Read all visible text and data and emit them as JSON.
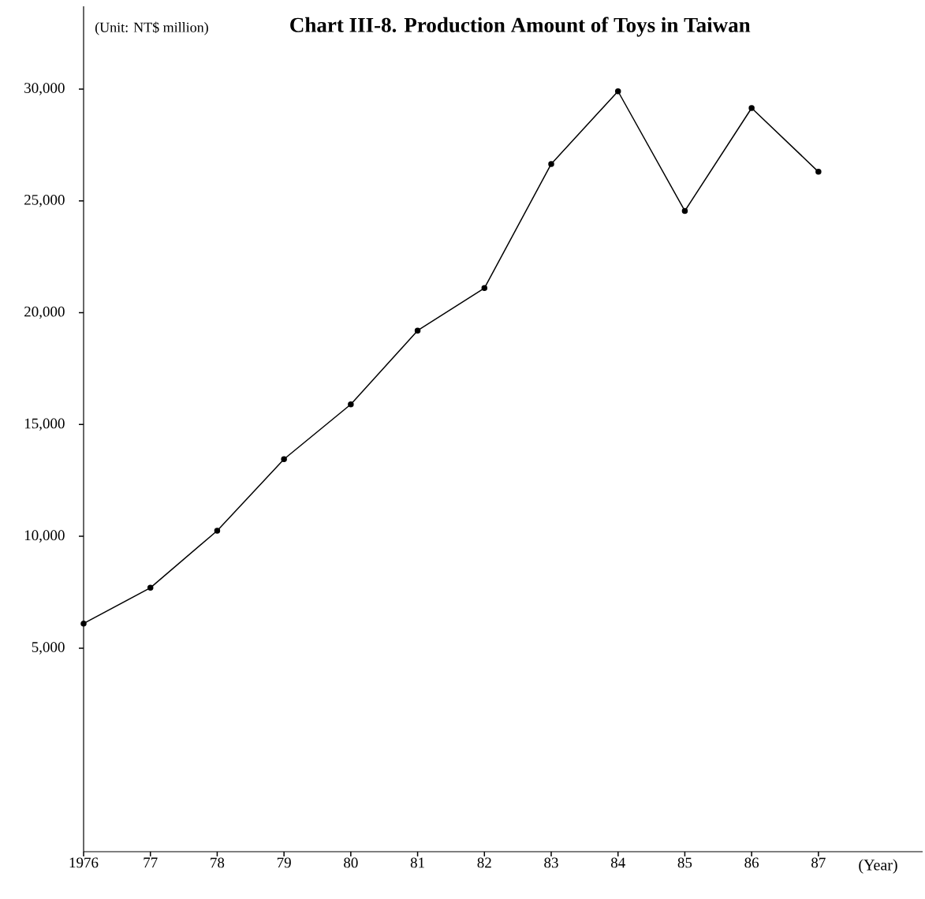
{
  "chart_data": {
    "type": "line",
    "title": "Chart III-8.  Production Amount of Toys in Taiwan",
    "ylabel": "(Unit: NT$ million)",
    "xlabel": "(Year)",
    "categories": [
      "1976",
      "77",
      "78",
      "79",
      "80",
      "81",
      "82",
      "83",
      "84",
      "85",
      "86",
      "87"
    ],
    "values": [
      6100,
      7700,
      10250,
      13450,
      15900,
      19200,
      21100,
      26650,
      29900,
      24550,
      29150,
      26300
    ],
    "color": "#000000",
    "marker": "circle",
    "line_style": "solid",
    "ylim": [
      -4100,
      33700
    ],
    "yticks": [
      {
        "value": 5000,
        "label": "5,000"
      },
      {
        "value": 10000,
        "label": "10,000"
      },
      {
        "value": 15000,
        "label": "15,000"
      },
      {
        "value": 20000,
        "label": "20,000"
      },
      {
        "value": 25000,
        "label": "25,000"
      },
      {
        "value": 30000,
        "label": "30,000"
      }
    ]
  }
}
